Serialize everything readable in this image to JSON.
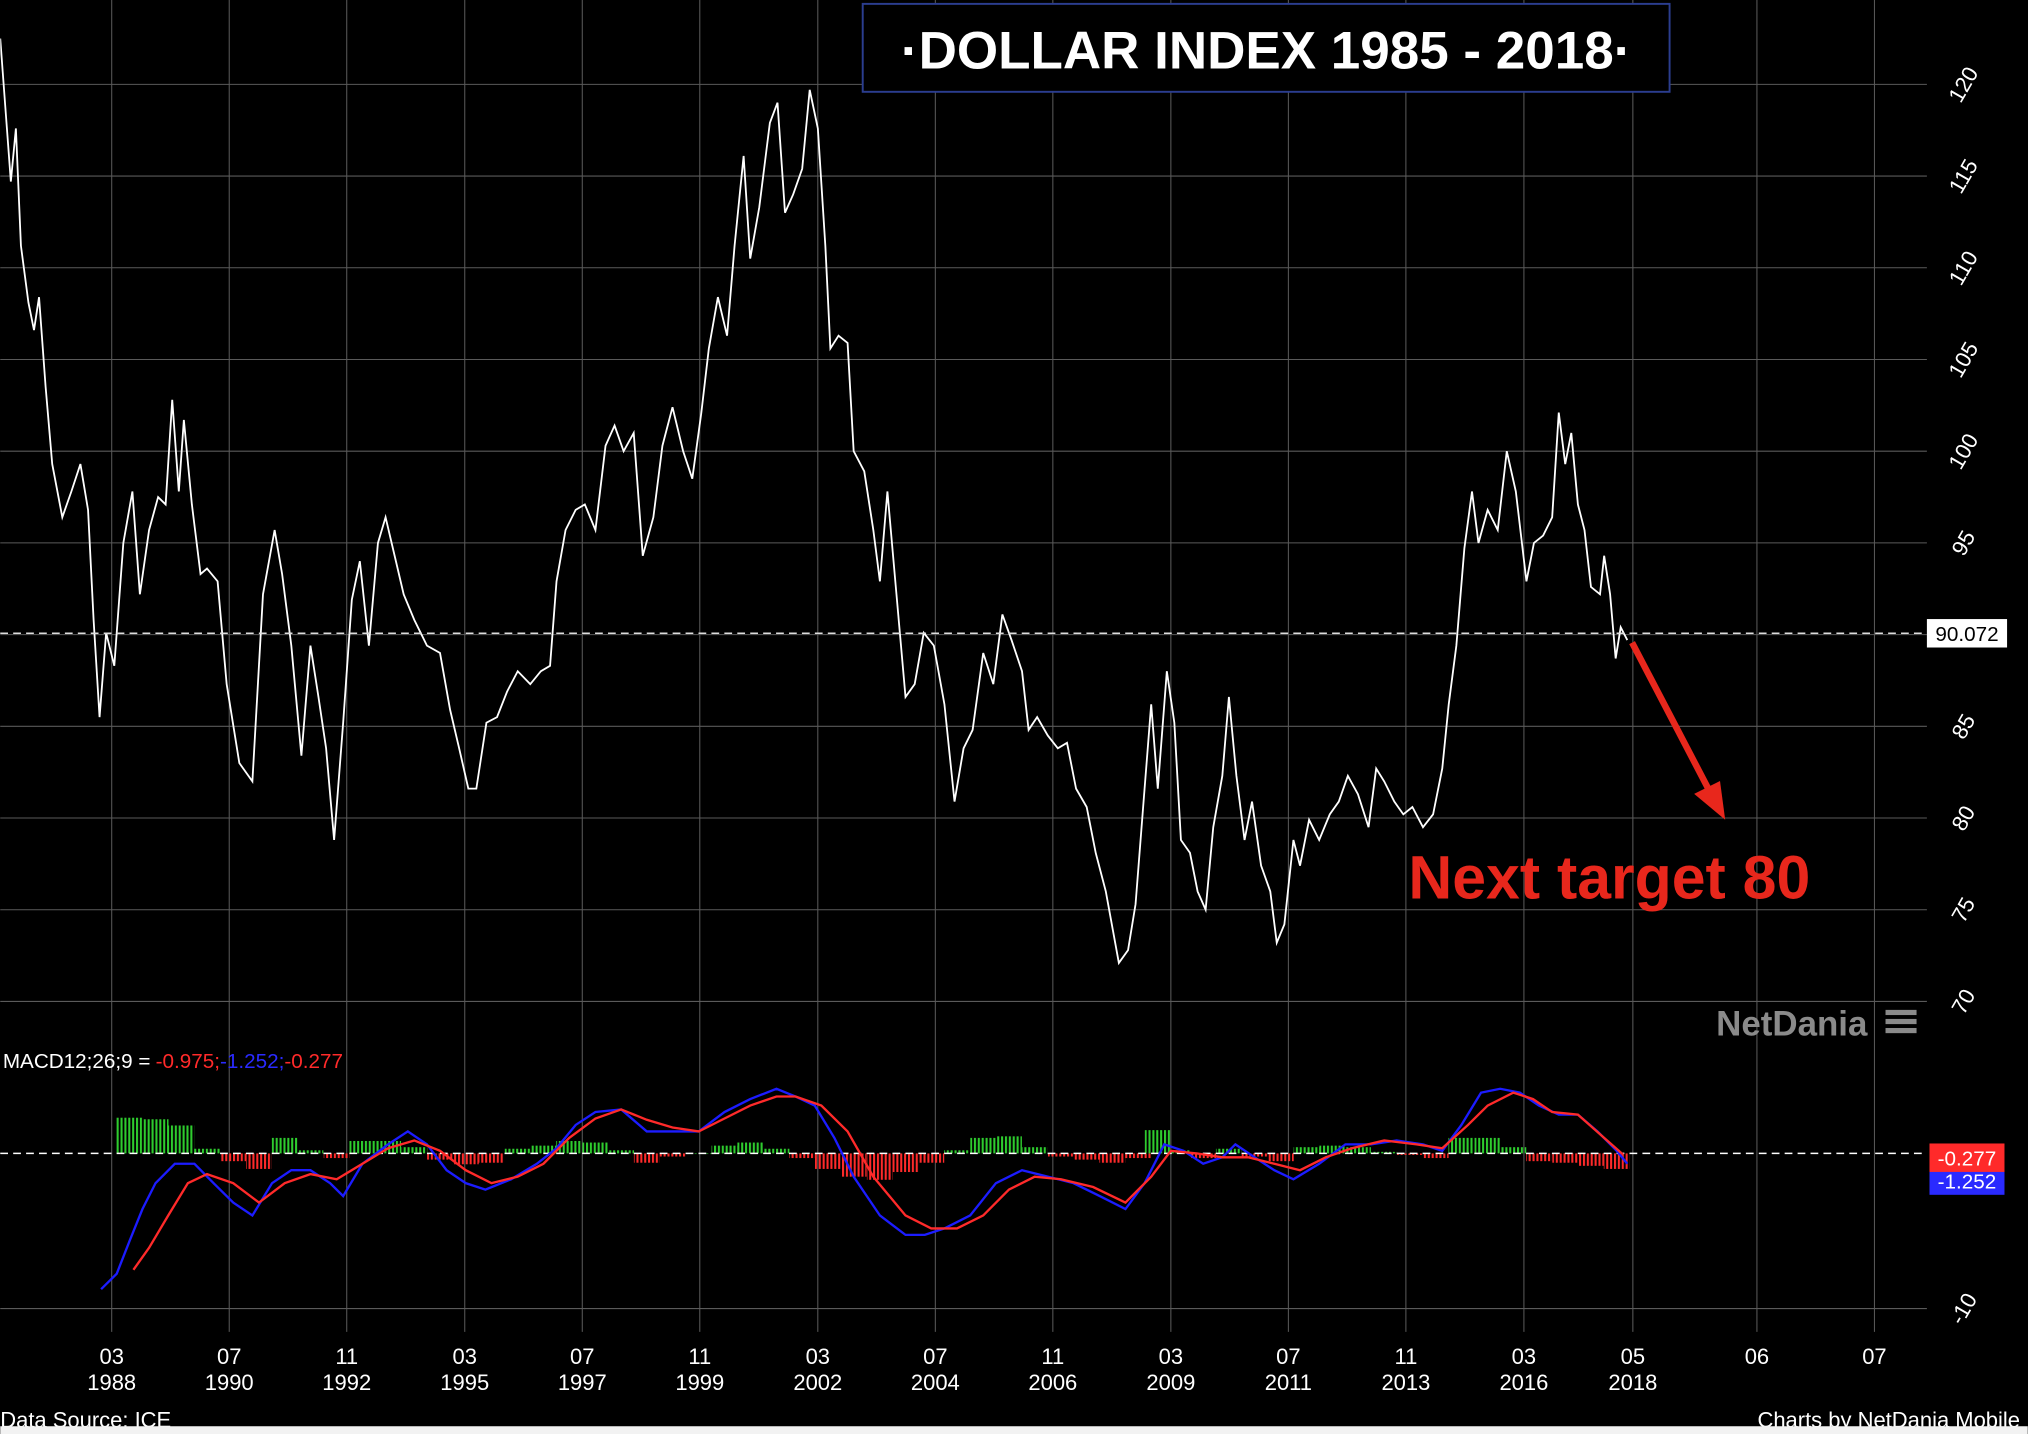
{
  "chart_data": [
    {
      "type": "line",
      "title": "·DOLLAR INDEX 1985 - 2018·",
      "x": [
        1985.96,
        1986.17,
        1986.27,
        1986.37,
        1986.52,
        1986.63,
        1986.73,
        1986.86,
        1986.99,
        1987.19,
        1987.37,
        1987.55,
        1987.7,
        1987.81,
        1987.93,
        1988.06,
        1988.22,
        1988.4,
        1988.58,
        1988.73,
        1988.91,
        1989.09,
        1989.24,
        1989.37,
        1989.5,
        1989.6,
        1989.76,
        1989.93,
        1990.06,
        1990.27,
        1990.45,
        1990.7,
        1990.96,
        1991.17,
        1991.4,
        1991.55,
        1991.73,
        1991.93,
        1992.11,
        1992.27,
        1992.42,
        1992.58,
        1992.76,
        1992.93,
        1993.09,
        1993.27,
        1993.45,
        1993.6,
        1993.78,
        1993.96,
        1994.17,
        1994.42,
        1994.68,
        1994.88,
        1995.06,
        1995.24,
        1995.4,
        1995.6,
        1995.81,
        1996.01,
        1996.22,
        1996.47,
        1996.68,
        1996.86,
        1996.99,
        1997.17,
        1997.37,
        1997.55,
        1997.76,
        1997.96,
        1998.14,
        1998.32,
        1998.52,
        1998.7,
        1998.91,
        1999.09,
        1999.29,
        1999.5,
        1999.68,
        1999.86,
        2000.01,
        2000.19,
        2000.37,
        2000.52,
        2000.7,
        2000.83,
        2001.01,
        2001.22,
        2001.37,
        2001.52,
        2001.68,
        2001.86,
        2002.01,
        2002.17,
        2002.32,
        2002.42,
        2002.58,
        2002.76,
        2002.88,
        2003.09,
        2003.27,
        2003.4,
        2003.55,
        2003.73,
        2003.91,
        2004.09,
        2004.27,
        2004.47,
        2004.68,
        2004.88,
        2005.06,
        2005.24,
        2005.45,
        2005.65,
        2005.83,
        2006.01,
        2006.22,
        2006.35,
        2006.52,
        2006.73,
        2006.93,
        2007.11,
        2007.29,
        2007.5,
        2007.68,
        2007.88,
        2008.14,
        2008.32,
        2008.47,
        2008.63,
        2008.78,
        2008.91,
        2009.09,
        2009.24,
        2009.37,
        2009.55,
        2009.7,
        2009.86,
        2010.01,
        2010.19,
        2010.32,
        2010.47,
        2010.63,
        2010.78,
        2010.96,
        2011.14,
        2011.27,
        2011.42,
        2011.6,
        2011.73,
        2011.91,
        2012.11,
        2012.32,
        2012.5,
        2012.68,
        2012.88,
        2013.09,
        2013.24,
        2013.4,
        2013.6,
        2013.78,
        2013.96,
        2014.17,
        2014.37,
        2014.55,
        2014.68,
        2014.83,
        2014.99,
        2015.14,
        2015.27,
        2015.45,
        2015.65,
        2015.83,
        2016.01,
        2016.22,
        2016.37,
        2016.55,
        2016.73,
        2016.86,
        2016.99,
        2017.11,
        2017.24,
        2017.37,
        2017.5,
        2017.68,
        2017.76,
        2017.88,
        2017.99,
        2018.09,
        2018.22
      ],
      "series": [
        {
          "color": "#ffffff",
          "values": [
            122.5,
            114.7,
            117.6,
            111.2,
            108.1,
            106.6,
            108.4,
            103.5,
            99.3,
            96.4,
            97.8,
            99.3,
            96.8,
            90.8,
            85.5,
            90.1,
            88.3,
            95.0,
            97.8,
            92.2,
            95.7,
            97.5,
            97.1,
            102.8,
            97.8,
            101.7,
            97.1,
            93.3,
            93.6,
            92.9,
            87.3,
            83.0,
            82.0,
            92.2,
            95.7,
            93.3,
            89.4,
            83.4,
            89.4,
            86.6,
            83.8,
            78.8,
            85.2,
            91.9,
            94.0,
            89.4,
            95.0,
            96.4,
            94.3,
            92.2,
            90.8,
            89.4,
            89.0,
            85.9,
            83.8,
            81.6,
            81.6,
            85.2,
            85.5,
            86.9,
            88.0,
            87.3,
            88.0,
            88.3,
            92.9,
            95.7,
            96.8,
            97.1,
            95.7,
            100.3,
            101.4,
            100.0,
            101.0,
            94.3,
            96.4,
            100.3,
            102.4,
            100.0,
            98.5,
            102.1,
            105.6,
            108.4,
            106.3,
            111.2,
            116.1,
            110.5,
            113.3,
            117.9,
            119.0,
            113.0,
            114.0,
            115.4,
            119.7,
            117.6,
            111.2,
            105.6,
            106.3,
            105.9,
            100.0,
            98.9,
            95.7,
            92.9,
            97.8,
            92.2,
            86.6,
            87.3,
            90.1,
            89.4,
            86.2,
            80.9,
            83.8,
            84.8,
            89.0,
            87.3,
            91.1,
            89.7,
            88.0,
            84.8,
            85.5,
            84.5,
            83.8,
            84.1,
            81.6,
            80.6,
            78.1,
            76.0,
            72.1,
            72.8,
            75.3,
            80.9,
            86.2,
            81.6,
            88.0,
            85.2,
            78.8,
            78.1,
            76.0,
            75.0,
            79.5,
            82.3,
            86.6,
            82.3,
            78.8,
            80.9,
            77.4,
            76.0,
            73.2,
            74.2,
            78.8,
            77.4,
            79.9,
            78.8,
            80.2,
            80.9,
            82.3,
            81.3,
            79.5,
            82.7,
            82.0,
            80.9,
            80.2,
            80.6,
            79.5,
            80.2,
            82.7,
            86.2,
            89.4,
            94.7,
            97.8,
            95.0,
            96.8,
            95.7,
            100.0,
            97.8,
            92.9,
            95.0,
            95.4,
            96.4,
            102.1,
            99.3,
            101.0,
            97.1,
            95.7,
            92.6,
            92.2,
            94.3,
            92.2,
            88.7,
            90.4,
            89.7
          ]
        }
      ],
      "xlim": [
        1985.96,
        2024.16
      ],
      "ylim": [
        68.2,
        124.6
      ],
      "yticks": [
        70,
        75,
        80,
        85,
        90,
        95,
        100,
        105,
        110,
        115,
        120
      ],
      "xticks": [
        {
          "value": 1988.17,
          "label": "03"
        },
        {
          "value": 1990.5,
          "label": "07"
        },
        {
          "value": 1992.83,
          "label": "11"
        },
        {
          "value": 1995.17,
          "label": "03"
        },
        {
          "value": 1997.5,
          "label": "07"
        },
        {
          "value": 1999.83,
          "label": "11"
        },
        {
          "value": 2002.17,
          "label": "03"
        },
        {
          "value": 2004.5,
          "label": "07"
        },
        {
          "value": 2006.83,
          "label": "11"
        },
        {
          "value": 2009.17,
          "label": "03"
        },
        {
          "value": 2011.5,
          "label": "07"
        },
        {
          "value": 2013.83,
          "label": "11"
        },
        {
          "value": 2016.17,
          "label": "03"
        },
        {
          "value": 2018.33,
          "label": "05"
        },
        {
          "value": 2020.79,
          "label": "06"
        },
        {
          "value": 2023.12,
          "label": "07"
        }
      ],
      "xtick_years": [
        "1988",
        "1990",
        "1992",
        "1995",
        "1997",
        "1999",
        "2002",
        "2004",
        "2006",
        "2009",
        "2011",
        "2013",
        "2016",
        "2018",
        null,
        null
      ],
      "grid": true,
      "reference_value": 90.072,
      "annotation": "Next target 80",
      "watermark": "NetDania",
      "source": "Data Source: ICE",
      "credit": "Charts by NetDania Mobile"
    },
    {
      "type": "macd",
      "label": "MACD12;26;9 =",
      "last_values": [
        -0.975,
        -1.252,
        -0.277
      ],
      "last_value_labels": [
        "-0.975;",
        "-1.252;",
        "-0.277"
      ],
      "last_value_colors": [
        "#ff2a2a",
        "#2a2aff",
        "#ff2a2a"
      ],
      "xlim": [
        1985.96,
        2024.16
      ],
      "ylim": [
        -11.5,
        7.25
      ],
      "yticks": [
        -10
      ],
      "series": [
        {
          "color": "#1c1cff",
          "x": [
            1987.96,
            1988.27,
            1988.52,
            1988.78,
            1989.04,
            1989.42,
            1989.81,
            1990.19,
            1990.58,
            1990.96,
            1991.35,
            1991.73,
            1992.11,
            1992.5,
            1992.76,
            1993.14,
            1993.65,
            1994.04,
            1994.42,
            1994.81,
            1995.19,
            1995.58,
            1996.09,
            1996.6,
            1996.99,
            1997.37,
            1997.76,
            1998.27,
            1998.78,
            1999.29,
            1999.81,
            2000.32,
            2000.83,
            2001.35,
            2001.73,
            2002.11,
            2002.5,
            2002.88,
            2003.4,
            2003.91,
            2004.29,
            2004.68,
            2005.19,
            2005.7,
            2006.22,
            2006.73,
            2007.24,
            2007.76,
            2008.27,
            2008.65,
            2009.04,
            2009.42,
            2009.81,
            2010.19,
            2010.45,
            2010.83,
            2011.22,
            2011.6,
            2012.11,
            2012.63,
            2013.14,
            2013.65,
            2014.17,
            2014.55,
            2014.93,
            2015.32,
            2015.7,
            2016.09,
            2016.47,
            2016.86,
            2017.24,
            2017.63,
            2018.01,
            2018.22
          ],
          "values": [
            -8.75,
            -7.75,
            -5.67,
            -3.58,
            -1.92,
            -0.67,
            -0.67,
            -1.92,
            -3.17,
            -4.0,
            -1.92,
            -1.08,
            -1.08,
            -1.92,
            -2.75,
            -0.67,
            0.58,
            1.42,
            0.58,
            -1.08,
            -1.92,
            -2.33,
            -1.67,
            -0.67,
            0.33,
            1.83,
            2.67,
            2.83,
            1.42,
            1.42,
            1.42,
            2.67,
            3.5,
            4.17,
            3.67,
            3.08,
            1.0,
            -1.5,
            -4.0,
            -5.25,
            -5.25,
            -4.83,
            -4.0,
            -1.92,
            -1.08,
            -1.5,
            -1.92,
            -2.75,
            -3.58,
            -1.92,
            0.58,
            0.17,
            -0.67,
            -0.25,
            0.58,
            -0.25,
            -1.08,
            -1.67,
            -0.67,
            0.58,
            0.58,
            0.83,
            0.58,
            0.17,
            1.83,
            3.92,
            4.17,
            3.92,
            3.08,
            2.5,
            2.5,
            1.42,
            0.17,
            -0.67
          ]
        },
        {
          "color": "#ff2a2a",
          "x": [
            1988.6,
            1988.91,
            1989.29,
            1989.68,
            1990.06,
            1990.58,
            1991.09,
            1991.6,
            1992.11,
            1992.63,
            1993.14,
            1993.65,
            1994.17,
            1994.68,
            1995.19,
            1995.7,
            1996.22,
            1996.73,
            1997.24,
            1997.76,
            1998.27,
            1998.78,
            1999.29,
            1999.81,
            2000.32,
            2000.83,
            2001.35,
            2001.73,
            2002.24,
            2002.76,
            2003.27,
            2003.91,
            2004.42,
            2004.93,
            2005.45,
            2005.96,
            2006.47,
            2006.99,
            2007.63,
            2008.27,
            2008.78,
            2009.17,
            2009.68,
            2010.19,
            2010.7,
            2011.22,
            2011.73,
            2012.24,
            2012.76,
            2013.4,
            2014.04,
            2014.55,
            2015.06,
            2015.45,
            2015.96,
            2016.35,
            2016.73,
            2017.24,
            2017.76,
            2018.14
          ],
          "values": [
            -7.5,
            -6.08,
            -4.0,
            -1.92,
            -1.33,
            -1.92,
            -3.17,
            -1.92,
            -1.33,
            -1.67,
            -0.67,
            0.33,
            0.83,
            0.17,
            -1.08,
            -1.92,
            -1.5,
            -0.67,
            1.0,
            2.25,
            2.83,
            2.17,
            1.67,
            1.42,
            2.25,
            3.08,
            3.67,
            3.67,
            3.08,
            1.42,
            -1.5,
            -4.0,
            -4.83,
            -4.83,
            -4.0,
            -2.33,
            -1.5,
            -1.67,
            -2.17,
            -3.17,
            -1.5,
            0.17,
            0,
            -0.25,
            -0.25,
            -0.67,
            -1.08,
            -0.25,
            0.33,
            0.83,
            0.58,
            0.33,
            1.83,
            3.08,
            3.92,
            3.5,
            2.67,
            2.5,
            1.0,
            -0.08
          ]
        }
      ],
      "histogram": {
        "positive_color": "#2ecc2e",
        "negative_color": "#ff2a2a",
        "x": [
          1988.52,
          1989.04,
          1989.55,
          1990.06,
          1990.58,
          1991.09,
          1991.6,
          1992.11,
          1992.63,
          1993.14,
          1993.65,
          1994.17,
          1994.68,
          1995.19,
          1995.7,
          1996.22,
          1996.73,
          1997.24,
          1997.76,
          1998.27,
          1998.78,
          1999.29,
          1999.81,
          2000.32,
          2000.83,
          2001.35,
          2001.86,
          2002.37,
          2002.88,
          2003.4,
          2003.91,
          2004.42,
          2004.93,
          2005.45,
          2005.96,
          2006.47,
          2006.99,
          2007.5,
          2008.01,
          2008.52,
          2008.91,
          2009.29,
          2009.81,
          2010.32,
          2010.83,
          2011.35,
          2011.86,
          2012.37,
          2012.88,
          2013.4,
          2013.91,
          2014.42,
          2014.93,
          2015.45,
          2015.96,
          2016.47,
          2016.99,
          2017.5,
          2018.01
        ],
        "values": [
          2.3,
          2.2,
          1.8,
          0.3,
          -0.5,
          -1.0,
          1.0,
          0.2,
          -0.3,
          0.8,
          0.8,
          0.4,
          -0.4,
          -0.7,
          -0.6,
          0.3,
          0.5,
          0.8,
          0.7,
          0.2,
          -0.6,
          -0.2,
          0,
          0.5,
          0.7,
          0.3,
          -0.3,
          -1.0,
          -1.5,
          -1.7,
          -1.2,
          -0.6,
          0.2,
          1.0,
          1.1,
          0.4,
          -0.2,
          -0.4,
          -0.6,
          -0.3,
          1.5,
          0.2,
          -0.3,
          0.3,
          -0.2,
          -0.5,
          0.4,
          0.5,
          0.4,
          0.1,
          -0.1,
          -0.3,
          1.0,
          1.0,
          0.4,
          -0.5,
          -0.6,
          -0.8,
          -1.0
        ]
      }
    }
  ]
}
